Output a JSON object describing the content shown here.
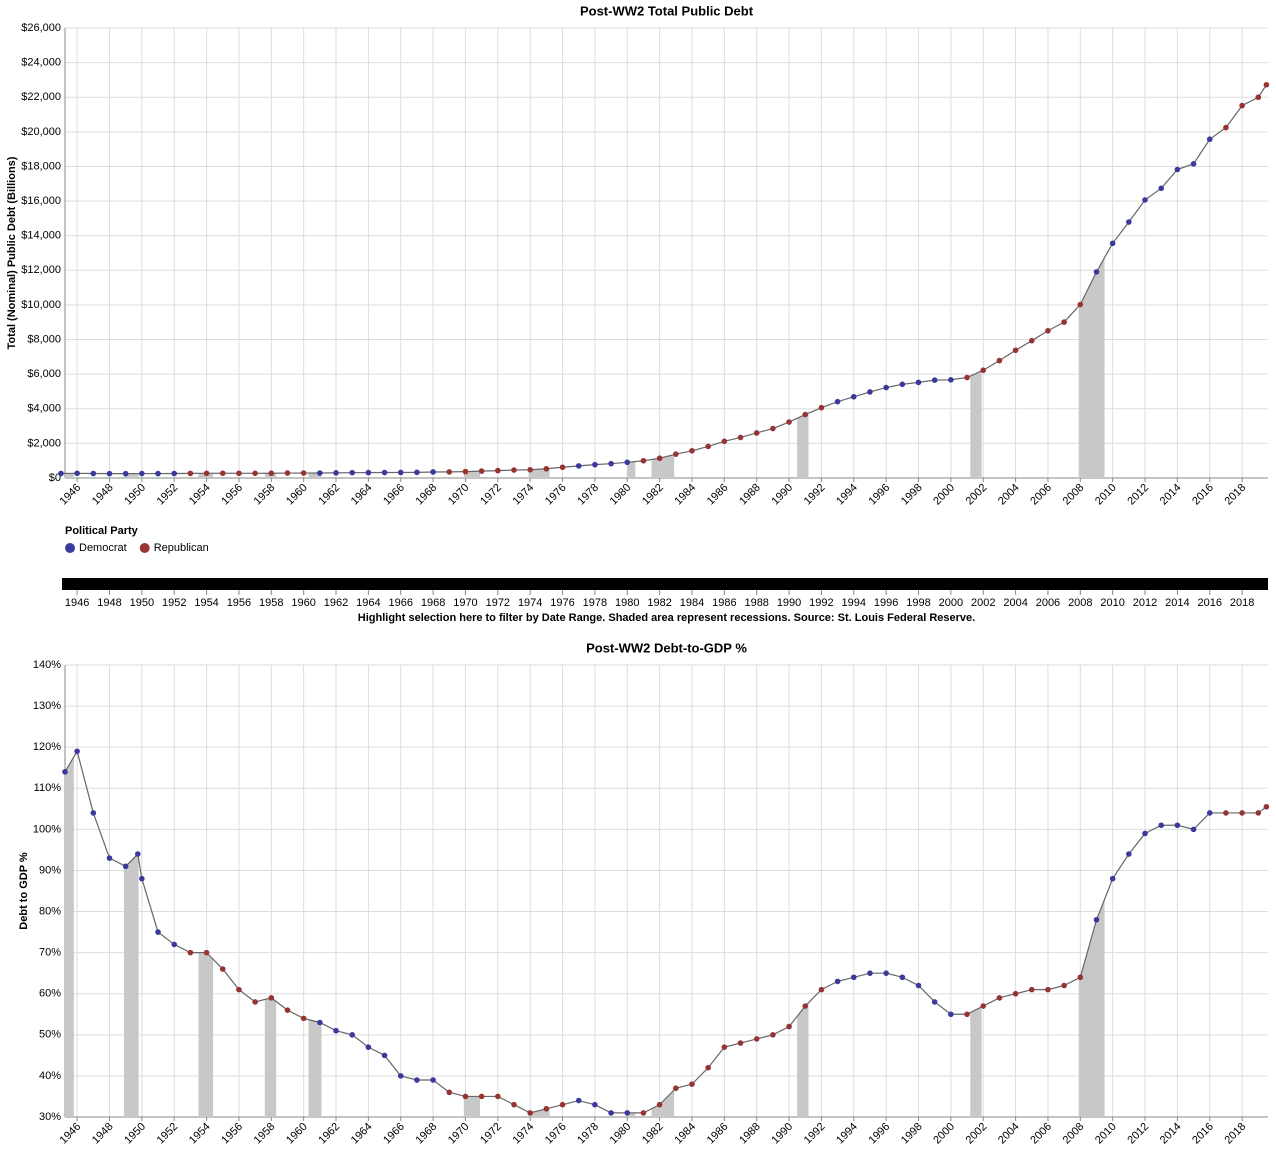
{
  "chart_data": [
    {
      "type": "line",
      "title": "Post-WW2 Total Public Debt",
      "ylabel": "Total (Nominal) Public Debt (Billions)",
      "x": [
        1945,
        1946,
        1947,
        1948,
        1949,
        1950,
        1951,
        1952,
        1953,
        1954,
        1955,
        1956,
        1957,
        1958,
        1959,
        1960,
        1961,
        1962,
        1963,
        1964,
        1965,
        1966,
        1967,
        1968,
        1969,
        1970,
        1971,
        1972,
        1973,
        1974,
        1975,
        1976,
        1977,
        1978,
        1979,
        1980,
        1981,
        1982,
        1983,
        1984,
        1985,
        1986,
        1987,
        1988,
        1989,
        1990,
        1991,
        1992,
        1993,
        1994,
        1995,
        1996,
        1997,
        1998,
        1999,
        2000,
        2001,
        2002,
        2003,
        2004,
        2005,
        2006,
        2007,
        2008,
        2009,
        2010,
        2011,
        2012,
        2013,
        2014,
        2015,
        2016,
        2017,
        2018,
        2019,
        2019.5
      ],
      "values": [
        260,
        271,
        258,
        252,
        252,
        257,
        255,
        259,
        266,
        271,
        274,
        272,
        270,
        276,
        285,
        286,
        289,
        298,
        306,
        312,
        317,
        320,
        326,
        348,
        354,
        370,
        398,
        427,
        458,
        475,
        533,
        620,
        699,
        772,
        827,
        907,
        997,
        1142,
        1377,
        1572,
        1823,
        2120,
        2346,
        2602,
        2857,
        3233,
        3665,
        4065,
        4411,
        4693,
        4974,
        5225,
        5413,
        5526,
        5656,
        5674,
        5807,
        6228,
        6783,
        7379,
        7933,
        8507,
        9008,
        10025,
        11910,
        13562,
        14790,
        16066,
        16738,
        17824,
        18151,
        19573,
        20245,
        21516,
        22000,
        22719
      ],
      "xlim": [
        1945.25,
        2019.6
      ],
      "ylim": [
        0,
        26000
      ],
      "yticks": [
        {
          "value": 0,
          "label": "$0"
        },
        {
          "value": 2000,
          "label": "$2,000"
        },
        {
          "value": 4000,
          "label": "$4,000"
        },
        {
          "value": 6000,
          "label": "$6,000"
        },
        {
          "value": 8000,
          "label": "$8,000"
        },
        {
          "value": 10000,
          "label": "$10,000"
        },
        {
          "value": 12000,
          "label": "$12,000"
        },
        {
          "value": 14000,
          "label": "$14,000"
        },
        {
          "value": 16000,
          "label": "$16,000"
        },
        {
          "value": 18000,
          "label": "$18,000"
        },
        {
          "value": 20000,
          "label": "$20,000"
        },
        {
          "value": 22000,
          "label": "$22,000"
        },
        {
          "value": 24000,
          "label": "$24,000"
        },
        {
          "value": 26000,
          "label": "$26,000"
        }
      ],
      "xticks": [
        1946,
        1948,
        1950,
        1952,
        1954,
        1956,
        1958,
        1960,
        1962,
        1964,
        1966,
        1968,
        1970,
        1972,
        1974,
        1976,
        1978,
        1980,
        1982,
        1984,
        1986,
        1988,
        1990,
        1992,
        1994,
        1996,
        1998,
        2000,
        2002,
        2004,
        2006,
        2008,
        2010,
        2012,
        2014,
        2016,
        2018
      ],
      "recessions": [
        [
          1945.1,
          1945.8
        ],
        [
          1948.9,
          1949.8
        ],
        [
          1953.5,
          1954.4
        ],
        [
          1957.6,
          1958.3
        ],
        [
          1960.3,
          1961.1
        ],
        [
          1969.9,
          1970.9
        ],
        [
          1973.9,
          1975.2
        ],
        [
          1980.0,
          1980.5
        ],
        [
          1981.5,
          1982.9
        ],
        [
          1990.5,
          1991.2
        ],
        [
          2001.2,
          2001.9
        ],
        [
          2007.9,
          2009.5
        ]
      ],
      "administrations": [
        {
          "start": 1945,
          "party": 0
        },
        {
          "start": 1953,
          "party": 1
        },
        {
          "start": 1961,
          "party": 0
        },
        {
          "start": 1969,
          "party": 1
        },
        {
          "start": 1977,
          "party": 0
        },
        {
          "start": 1981,
          "party": 1
        },
        {
          "start": 1993,
          "party": 0
        },
        {
          "start": 2001,
          "party": 1
        },
        {
          "start": 2009,
          "party": 0
        },
        {
          "start": 2017,
          "party": 1
        }
      ],
      "legend": {
        "title": "Political Party",
        "items": [
          {
            "name": "Democrat",
            "color": "#3a3a9c"
          },
          {
            "name": "Republican",
            "color": "#963434"
          }
        ]
      },
      "grid": true
    },
    {
      "type": "range-selector",
      "xlabel": "Highlight selection here to filter by Date Range. Shaded area represent recessions. Source: St. Louis Federal Reserve.",
      "xlim": [
        1945.25,
        2019.6
      ],
      "xticks": [
        1946,
        1948,
        1950,
        1952,
        1954,
        1956,
        1958,
        1960,
        1962,
        1964,
        1966,
        1968,
        1970,
        1972,
        1974,
        1976,
        1978,
        1980,
        1982,
        1984,
        1986,
        1988,
        1990,
        1992,
        1994,
        1996,
        1998,
        2000,
        2002,
        2004,
        2006,
        2008,
        2010,
        2012,
        2014,
        2016,
        2018
      ],
      "color": "#000000"
    },
    {
      "type": "line",
      "title": "Post-WW2 Debt-to-GDP %",
      "ylabel": "Debt to GDP %",
      "x": [
        1945.25,
        1946,
        1947,
        1948,
        1949,
        1949.75,
        1950,
        1951,
        1952,
        1953,
        1954,
        1955,
        1956,
        1957,
        1958,
        1959,
        1960,
        1961,
        1962,
        1963,
        1964,
        1965,
        1966,
        1967,
        1968,
        1969,
        1970,
        1971,
        1972,
        1973,
        1974,
        1975,
        1976,
        1977,
        1978,
        1979,
        1980,
        1981,
        1982,
        1983,
        1984,
        1985,
        1986,
        1987,
        1988,
        1989,
        1990,
        1991,
        1992,
        1993,
        1994,
        1995,
        1996,
        1997,
        1998,
        1999,
        2000,
        2001,
        2002,
        2003,
        2004,
        2005,
        2006,
        2007,
        2008,
        2009,
        2010,
        2011,
        2012,
        2013,
        2014,
        2015,
        2016,
        2017,
        2018,
        2019,
        2019.5
      ],
      "values": [
        114,
        119,
        104,
        93,
        91,
        94,
        88,
        75,
        72,
        70,
        70,
        66,
        61,
        58,
        59,
        56,
        54,
        53,
        51,
        50,
        47,
        45,
        40,
        39,
        39,
        36,
        35,
        35,
        35,
        33,
        31,
        32,
        33,
        34,
        33,
        31,
        31,
        31,
        33,
        37,
        38,
        42,
        47,
        48,
        49,
        50,
        52,
        57,
        61,
        63,
        64,
        65,
        65,
        64,
        62,
        58,
        55,
        55,
        57,
        59,
        60,
        61,
        61,
        62,
        64,
        78,
        88,
        94,
        99,
        101,
        101,
        100,
        104,
        104,
        104,
        104,
        105.5
      ],
      "xlim": [
        1945.25,
        2019.6
      ],
      "ylim": [
        30,
        140
      ],
      "yticks": [
        {
          "value": 30,
          "label": "30%"
        },
        {
          "value": 40,
          "label": "40%"
        },
        {
          "value": 50,
          "label": "50%"
        },
        {
          "value": 60,
          "label": "60%"
        },
        {
          "value": 70,
          "label": "70%"
        },
        {
          "value": 80,
          "label": "80%"
        },
        {
          "value": 90,
          "label": "90%"
        },
        {
          "value": 100,
          "label": "100%"
        },
        {
          "value": 110,
          "label": "110%"
        },
        {
          "value": 120,
          "label": "120%"
        },
        {
          "value": 130,
          "label": "130%"
        },
        {
          "value": 140,
          "label": "140%"
        }
      ],
      "xticks": [
        1946,
        1948,
        1950,
        1952,
        1954,
        1956,
        1958,
        1960,
        1962,
        1964,
        1966,
        1968,
        1970,
        1972,
        1974,
        1976,
        1978,
        1980,
        1982,
        1984,
        1986,
        1988,
        1990,
        1992,
        1994,
        1996,
        1998,
        2000,
        2002,
        2004,
        2006,
        2008,
        2010,
        2012,
        2014,
        2016,
        2018
      ],
      "recessions": [
        [
          1945.1,
          1945.8
        ],
        [
          1948.9,
          1949.8
        ],
        [
          1953.5,
          1954.4
        ],
        [
          1957.6,
          1958.3
        ],
        [
          1960.3,
          1961.1
        ],
        [
          1969.9,
          1970.9
        ],
        [
          1973.9,
          1975.2
        ],
        [
          1980.0,
          1980.5
        ],
        [
          1981.5,
          1982.9
        ],
        [
          1990.5,
          1991.2
        ],
        [
          2001.2,
          2001.9
        ],
        [
          2007.9,
          2009.5
        ]
      ],
      "administrations": [
        {
          "start": 1945,
          "party": 0
        },
        {
          "start": 1953,
          "party": 1
        },
        {
          "start": 1961,
          "party": 0
        },
        {
          "start": 1969,
          "party": 1
        },
        {
          "start": 1977,
          "party": 0
        },
        {
          "start": 1981,
          "party": 1
        },
        {
          "start": 1993,
          "party": 0
        },
        {
          "start": 2001,
          "party": 1
        },
        {
          "start": 2009,
          "party": 0
        },
        {
          "start": 2017,
          "party": 1
        }
      ],
      "legend_ref": 0,
      "grid": true
    }
  ]
}
